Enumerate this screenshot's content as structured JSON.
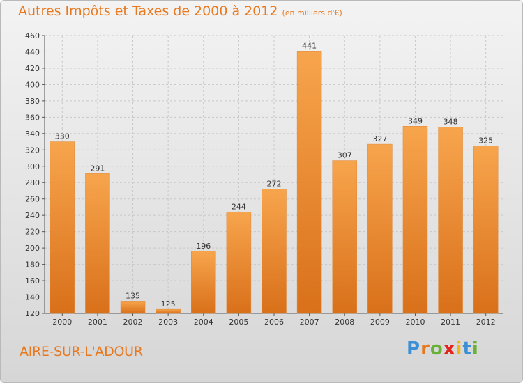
{
  "header": {
    "title": "Autres Impôts et Taxes de 2000 à 2012",
    "unit": "(en milliers d'€)"
  },
  "footer": {
    "city": "AIRE-SUR-L'ADOUR",
    "logo_text": "Proxiti"
  },
  "colors": {
    "bar_light": "#f7a54d",
    "bar_dark": "#d9701a",
    "accent": "#e8781e",
    "grid": "#c8c8c8"
  },
  "chart_data": {
    "type": "bar",
    "categories": [
      "2000",
      "2001",
      "2002",
      "2003",
      "2004",
      "2005",
      "2006",
      "2007",
      "2008",
      "2009",
      "2010",
      "2011",
      "2012"
    ],
    "values": [
      330,
      291,
      135,
      125,
      196,
      244,
      272,
      441,
      307,
      327,
      349,
      348,
      325
    ],
    "ylim": [
      120,
      460
    ],
    "yticks": [
      120,
      140,
      160,
      180,
      200,
      220,
      240,
      260,
      280,
      300,
      320,
      340,
      360,
      380,
      400,
      420,
      440,
      460
    ],
    "grid": true,
    "title": "Autres Impôts et Taxes de 2000 à 2012",
    "xlabel": "",
    "ylabel": ""
  }
}
